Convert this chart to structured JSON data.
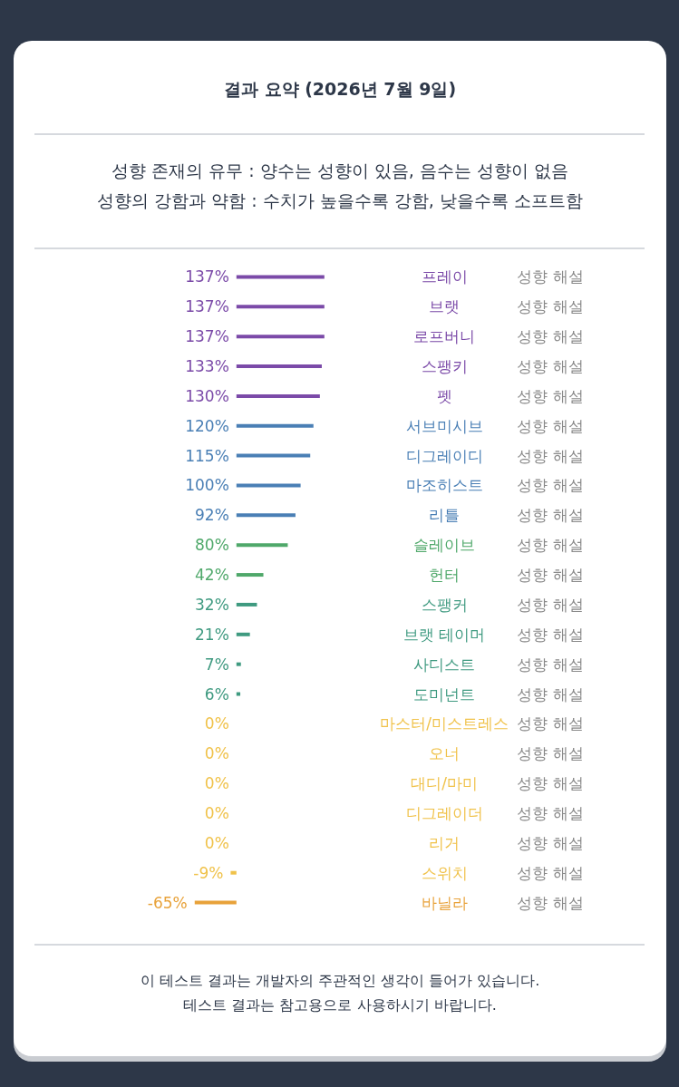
{
  "chart_data": {
    "type": "bar",
    "orientation": "horizontal",
    "title": "결과 요약 (2026년 7월 9일)",
    "subtitle": "성향 존재의 유무 : 양수는 성향이 있음, 음수는 성향이 없음\n성향의 강함과 약함 : 수치가 높을수록 강함, 낮을수록 소프트함",
    "categories": [
      "프레이",
      "브랫",
      "로프버니",
      "스팽키",
      "펫",
      "서브미시브",
      "디그레이디",
      "마조히스트",
      "리틀",
      "슬레이브",
      "헌터",
      "스팽커",
      "브랫 테이머",
      "사디스트",
      "도미넌트",
      "마스터/미스트레스",
      "오너",
      "대디/마미",
      "디그레이더",
      "리거",
      "스위치",
      "바닐라"
    ],
    "values": [
      137,
      137,
      137,
      133,
      130,
      120,
      115,
      100,
      92,
      80,
      42,
      32,
      21,
      7,
      6,
      0,
      0,
      0,
      0,
      0,
      -9,
      -65
    ],
    "value_labels": [
      "137%",
      "137%",
      "137%",
      "133%",
      "130%",
      "120%",
      "115%",
      "100%",
      "92%",
      "80%",
      "42%",
      "32%",
      "21%",
      "7%",
      "6%",
      "0%",
      "0%",
      "0%",
      "0%",
      "0%",
      "-9%",
      "-65%"
    ],
    "colors": [
      "#7b4aa8",
      "#7b4aa8",
      "#7b4aa8",
      "#7b4aa8",
      "#7b4aa8",
      "#4a7fb5",
      "#4a7fb5",
      "#4a7fb5",
      "#4a7fb5",
      "#4fa86a",
      "#4fa86a",
      "#3f9a80",
      "#3f9a80",
      "#3f9a80",
      "#3f9a80",
      "#f0c24a",
      "#f0c24a",
      "#f0c24a",
      "#f0c24a",
      "#f0c24a",
      "#f0c24a",
      "#e8a23a"
    ],
    "tick_labels": "y",
    "annotations": [
      "성향 해설",
      "성향 해설",
      "성향 해설",
      "성향 해설",
      "성향 해설",
      "성향 해설",
      "성향 해설",
      "성향 해설",
      "성향 해설",
      "성향 해설",
      "성향 해설",
      "성향 해설",
      "성향 해설",
      "성향 해설",
      "성향 해설",
      "성향 해설",
      "성향 해설",
      "성향 해설",
      "성향 해설",
      "성향 해설",
      "성향 해설",
      "성향 해설",
      "이 테스트 결과는 개발자의 주관적인 생각이 들어가 있습니다.",
      "테스트 결과는 참고용으로 사용하시기 바랍니다."
    ]
  }
}
